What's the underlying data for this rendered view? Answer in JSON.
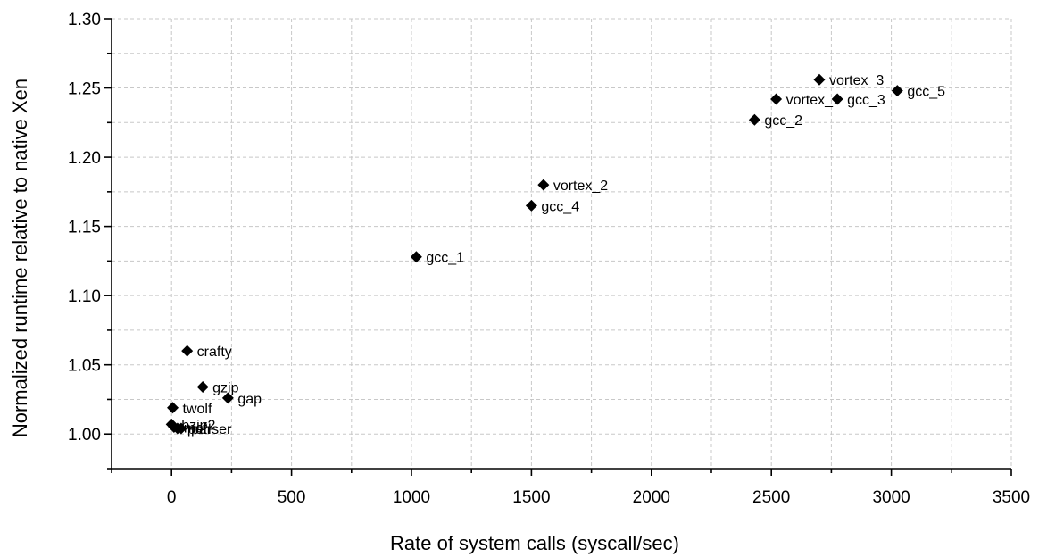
{
  "chart_data": {
    "type": "scatter",
    "title": "",
    "xlabel": "Rate of system calls (syscall/sec)",
    "ylabel": "Normalized runtime relative to native Xen",
    "xlim": [
      -250,
      3500
    ],
    "ylim": [
      0.975,
      1.3
    ],
    "xticks": [
      0,
      500,
      1000,
      1500,
      2000,
      2500,
      3000,
      3500
    ],
    "xtick_labels": [
      "0",
      "500",
      "1000",
      "1500",
      "2000",
      "2500",
      "3000",
      "3500"
    ],
    "yticks": [
      1.0,
      1.05,
      1.1,
      1.15,
      1.2,
      1.25,
      1.3
    ],
    "ytick_labels": [
      "1.00",
      "1.05",
      "1.10",
      "1.15",
      "1.20",
      "1.25",
      "1.30"
    ],
    "grid": true,
    "marker": "diamond",
    "marker_color": "#000000",
    "points": [
      {
        "label": "gcc_5",
        "x": 3025,
        "y": 1.248
      },
      {
        "label": "gcc_3",
        "x": 2775,
        "y": 1.242
      },
      {
        "label": "vortex_3",
        "x": 2700,
        "y": 1.256
      },
      {
        "label": "vortex_1",
        "x": 2520,
        "y": 1.242
      },
      {
        "label": "gcc_2",
        "x": 2430,
        "y": 1.227
      },
      {
        "label": "vortex_2",
        "x": 1550,
        "y": 1.18
      },
      {
        "label": "gcc_4",
        "x": 1500,
        "y": 1.165
      },
      {
        "label": "gcc_1",
        "x": 1020,
        "y": 1.128
      },
      {
        "label": "crafty",
        "x": 65,
        "y": 1.06
      },
      {
        "label": "gzip",
        "x": 130,
        "y": 1.034
      },
      {
        "label": "gap",
        "x": 235,
        "y": 1.026
      },
      {
        "label": "twolf",
        "x": 5,
        "y": 1.019
      },
      {
        "label": "bzip2",
        "x": 0,
        "y": 1.007
      },
      {
        "label": "mcf",
        "x": 10,
        "y": 1.005
      },
      {
        "label": "perl",
        "x": 25,
        "y": 1.004
      },
      {
        "label": "parser",
        "x": 40,
        "y": 1.004
      }
    ]
  }
}
